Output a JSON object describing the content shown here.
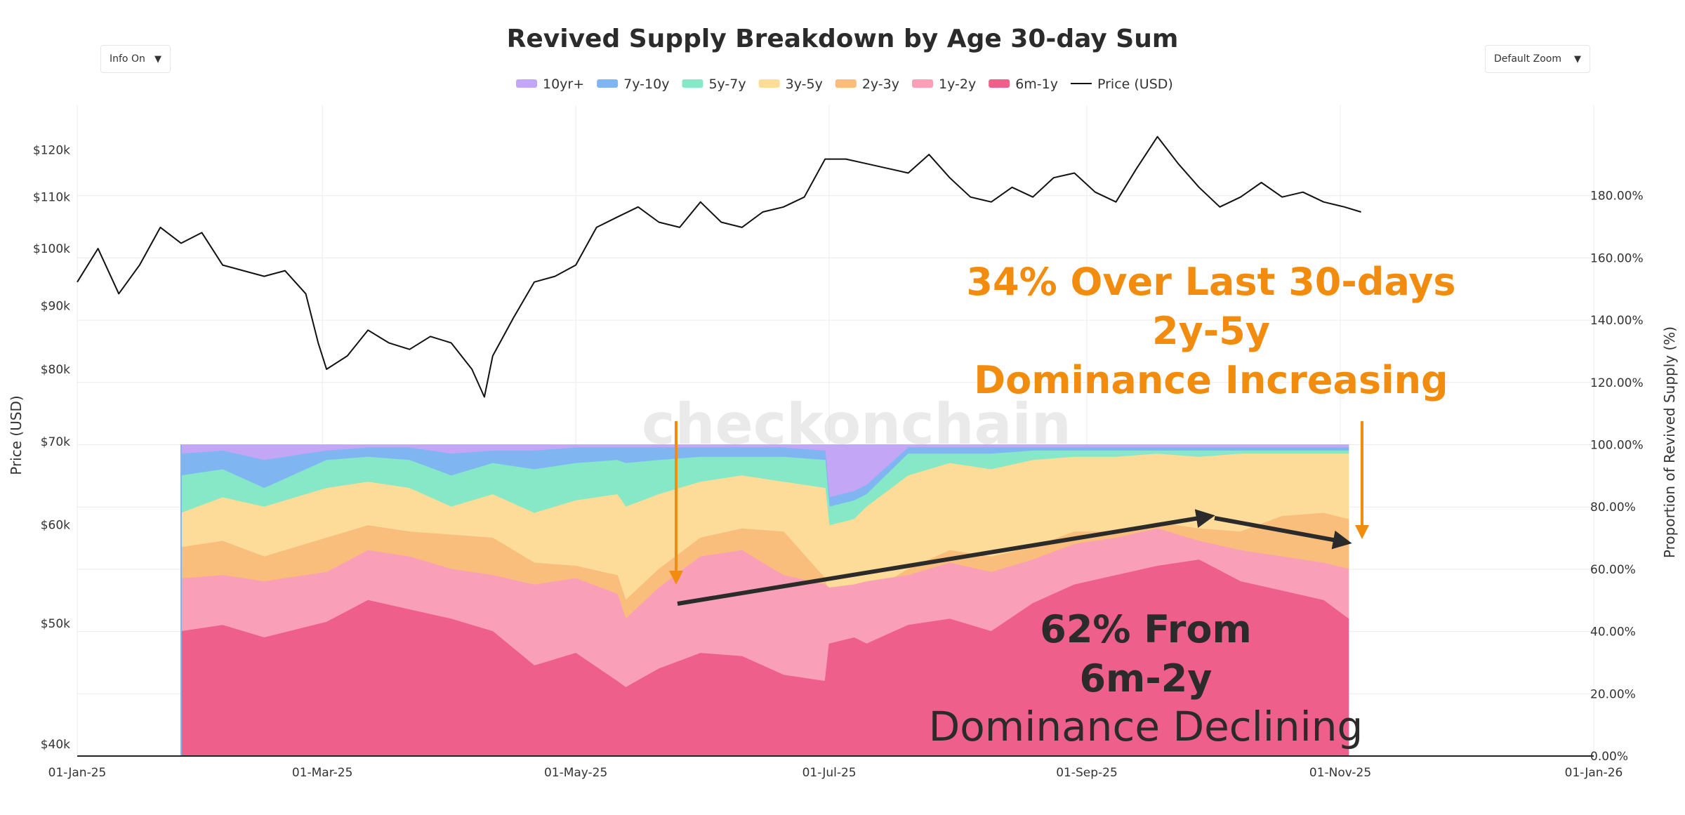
{
  "controls": {
    "info_label": "Info On",
    "zoom_label": "Default Zoom",
    "caret": "▼"
  },
  "watermark": "_checkonchain",
  "chart_data": {
    "type": "area",
    "title": "Revived Supply Breakdown by Age  30-day Sum",
    "ylabel_left": "Price (USD)",
    "ylabel_right": "Proportion of Revived Supply (%)",
    "x_ticks": [
      "01-Jan-25",
      "01-Mar-25",
      "01-May-25",
      "01-Jul-25",
      "01-Sep-25",
      "01-Nov-25",
      "01-Jan-26"
    ],
    "x_range_days": [
      0,
      365
    ],
    "y_left_ticks": [
      "$120k",
      "$110k",
      "$100k",
      "$90k",
      "$80k",
      "$70k",
      "$60k",
      "$50k",
      "$40k"
    ],
    "y_left_values": [
      120000,
      110000,
      100000,
      90000,
      80000,
      70000,
      60000,
      50000,
      40000
    ],
    "y_left_scale": "log",
    "y_left_range": [
      40000,
      127000
    ],
    "y_right_ticks": [
      "180.00%",
      "160.00%",
      "140.00%",
      "120.00%",
      "100.00%",
      "80.00%",
      "60.00%",
      "40.00%",
      "20.00%",
      "0.00%"
    ],
    "y_right_range": [
      0,
      200
    ],
    "legend": [
      {
        "name": "10yr+",
        "color": "#c3a6f5"
      },
      {
        "name": "7y-10y",
        "color": "#7fb6f2"
      },
      {
        "name": "5y-7y",
        "color": "#86e8c6"
      },
      {
        "name": "3y-5y",
        "color": "#fddb98"
      },
      {
        "name": "2y-3y",
        "color": "#f9bd7c"
      },
      {
        "name": "1y-2y",
        "color": "#f9a0b8"
      },
      {
        "name": "6m-1y",
        "color": "#ef5f8b"
      },
      {
        "name": "Price (USD)",
        "color": "#111111"
      }
    ],
    "area_x_days": [
      25,
      35,
      45,
      60,
      70,
      80,
      90,
      100,
      110,
      120,
      130,
      132,
      140,
      150,
      160,
      170,
      180,
      181,
      187,
      190,
      200,
      210,
      220,
      230,
      240,
      250,
      260,
      270,
      280,
      290,
      300,
      306
    ],
    "stack_boundaries_pct": {
      "6m-1y": [
        40,
        42,
        38,
        43,
        50,
        47,
        44,
        40,
        29,
        33,
        24,
        22,
        28,
        33,
        32,
        26,
        24,
        36,
        38,
        36,
        42,
        44,
        40,
        49,
        55,
        58,
        61,
        63,
        56,
        53,
        50,
        44
      ],
      "1y-2y": [
        57,
        58,
        56,
        59,
        66,
        64,
        60,
        58,
        55,
        57,
        52,
        44,
        54,
        64,
        66,
        58,
        55,
        54,
        55,
        56,
        58,
        62,
        59,
        63,
        68,
        70,
        73,
        69,
        66,
        64,
        62,
        60
      ],
      "2y-3y": [
        67,
        69,
        64,
        70,
        74,
        72,
        71,
        70,
        62,
        61,
        58,
        50,
        60,
        70,
        73,
        72,
        57,
        48,
        54,
        52,
        60,
        66,
        64,
        67,
        72,
        72,
        75,
        73,
        72,
        77,
        78,
        76
      ],
      "3y-5y": [
        78,
        83,
        80,
        86,
        88,
        86,
        80,
        84,
        78,
        82,
        84,
        80,
        84,
        88,
        90,
        88,
        86,
        74,
        76,
        80,
        90,
        94,
        92,
        95,
        96,
        96,
        97,
        96,
        97,
        97,
        97,
        97
      ],
      "5y-7y": [
        90,
        92,
        86,
        95,
        96,
        95,
        90,
        94,
        92,
        94,
        95,
        94,
        95,
        96,
        96,
        96,
        95,
        80,
        82,
        84,
        97,
        97,
        97,
        98,
        98,
        98,
        98,
        98,
        98,
        98,
        98,
        98
      ],
      "7y-10y": [
        97,
        98,
        95,
        98,
        99,
        99,
        97,
        98,
        98,
        99,
        99,
        99,
        99,
        99,
        99,
        99,
        98,
        83,
        85,
        87,
        99,
        99,
        99,
        99,
        99,
        99,
        99,
        99,
        99,
        99,
        99,
        99
      ],
      "10yr+": [
        100,
        100,
        100,
        100,
        100,
        100,
        100,
        100,
        100,
        100,
        100,
        100,
        100,
        100,
        100,
        100,
        100,
        100,
        100,
        100,
        100,
        100,
        100,
        100,
        100,
        100,
        100,
        100,
        100,
        100,
        100,
        100
      ]
    },
    "price_days": [
      0,
      5,
      10,
      15,
      20,
      25,
      30,
      35,
      40,
      45,
      50,
      55,
      58,
      60,
      65,
      70,
      75,
      80,
      85,
      90,
      95,
      98,
      100,
      105,
      110,
      115,
      120,
      125,
      130,
      135,
      140,
      145,
      150,
      155,
      160,
      165,
      170,
      175,
      180,
      185,
      190,
      195,
      200,
      205,
      210,
      215,
      220,
      225,
      230,
      235,
      240,
      245,
      250,
      255,
      260,
      265,
      270,
      275,
      280,
      285,
      290,
      295,
      300,
      305,
      309
    ],
    "price_values": [
      94000,
      100000,
      92000,
      97000,
      104000,
      101000,
      103000,
      97000,
      96000,
      95000,
      96000,
      92000,
      84000,
      80000,
      82000,
      86000,
      84000,
      83000,
      85000,
      84000,
      80000,
      76000,
      82000,
      88000,
      94000,
      95000,
      97000,
      104000,
      106000,
      108000,
      105000,
      104000,
      109000,
      105000,
      104000,
      107000,
      108000,
      110000,
      118000,
      118000,
      117000,
      116000,
      115000,
      119000,
      114000,
      110000,
      109000,
      112000,
      110000,
      114000,
      115000,
      111000,
      109000,
      116000,
      123000,
      117000,
      112000,
      108000,
      110000,
      113000,
      110000,
      111000,
      109000,
      108000,
      107000
    ],
    "annotations": {
      "orange_line1": "34% Over Last 30-days",
      "orange_line2": "2y-5y",
      "orange_line3": "Dominance Increasing",
      "dark_line1": "62% From",
      "dark_line2": "6m-2y",
      "dark_line3": "Dominance Declining"
    }
  }
}
